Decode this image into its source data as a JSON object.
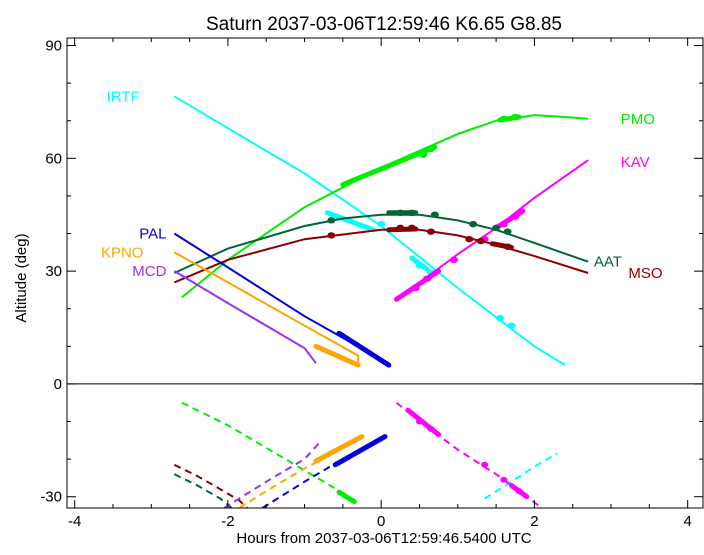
{
  "chart_data": {
    "type": "line",
    "title": "Saturn 2037-03-06T12:59:46  K6.65  G8.85",
    "xlabel": "Hours from 2037-03-06T12:59:46.5400 UTC",
    "ylabel": "Altitude (deg)",
    "xlim": [
      -4.1,
      4.2
    ],
    "ylim": [
      -33,
      92
    ],
    "x_ticks": [
      -4,
      -2,
      0,
      2,
      4
    ],
    "y_ticks": [
      -30,
      0,
      30,
      60,
      90
    ],
    "grid": false,
    "zero_line": true,
    "series": [
      {
        "name": "IRTF",
        "color": "#00ffff",
        "label_pos": [
          -3.1,
          76.5
        ],
        "solid": [
          [
            -2.7,
            76.5
          ],
          [
            -2.0,
            68.0
          ],
          [
            -1.0,
            56.0
          ],
          [
            0.0,
            42.0
          ],
          [
            1.0,
            25.5
          ],
          [
            2.0,
            10.0
          ],
          [
            2.4,
            5.0
          ]
        ],
        "dashed": [
          [
            1.35,
            -30.5
          ],
          [
            1.7,
            -26.0
          ],
          [
            2.0,
            -22.0
          ],
          [
            2.3,
            -18.5
          ]
        ],
        "markers": [
          [
            0.0,
            42.5
          ],
          [
            0.5,
            31.5
          ],
          [
            0.65,
            29.5
          ],
          [
            1.55,
            17.5
          ],
          [
            1.7,
            15.5
          ]
        ],
        "thick": [
          [
            [
              -0.7,
              45.5
            ],
            [
              -0.1,
              41.0
            ]
          ],
          [
            [
              0.4,
              33.5
            ],
            [
              0.6,
              30.5
            ]
          ]
        ]
      },
      {
        "name": "PMO",
        "color": "#00ee00",
        "label_pos": [
          3.1,
          70.5
        ],
        "solid": [
          [
            -2.6,
            23.0
          ],
          [
            -2.0,
            33.0
          ],
          [
            -1.0,
            47.0
          ],
          [
            0.0,
            57.5
          ],
          [
            0.5,
            62.0
          ],
          [
            1.0,
            66.5
          ],
          [
            1.5,
            70.0
          ],
          [
            2.0,
            71.5
          ],
          [
            2.4,
            71.0
          ],
          [
            2.7,
            70.5
          ]
        ],
        "dashed": [
          [
            -2.6,
            -5.0
          ],
          [
            -2.0,
            -11.0
          ],
          [
            -1.5,
            -17.0
          ],
          [
            -1.0,
            -23.0
          ],
          [
            -0.5,
            -29.0
          ],
          [
            -0.35,
            -31.0
          ]
        ],
        "markers": [
          [
            0.55,
            61.0
          ],
          [
            0.65,
            62.5
          ],
          [
            1.6,
            70.5
          ],
          [
            1.75,
            71.0
          ]
        ],
        "thick": [
          [
            [
              -0.5,
              53.0
            ],
            [
              0.7,
              63.0
            ]
          ],
          [
            [
              1.55,
              70.2
            ],
            [
              1.8,
              71.0
            ]
          ],
          [
            [
              -0.55,
              -28.8
            ],
            [
              -0.35,
              -31.3
            ]
          ]
        ]
      },
      {
        "name": "KAV",
        "color": "#ff00ff",
        "label_pos": [
          3.1,
          59.0
        ],
        "solid": [
          [
            0.2,
            22.5
          ],
          [
            0.5,
            27.0
          ],
          [
            1.0,
            34.5
          ],
          [
            1.5,
            41.5
          ],
          [
            2.0,
            49.5
          ],
          [
            2.7,
            59.5
          ]
        ],
        "dashed": [
          [
            0.2,
            -5.0
          ],
          [
            0.5,
            -10.0
          ],
          [
            1.0,
            -17.5
          ],
          [
            1.5,
            -24.0
          ],
          [
            2.0,
            -31.5
          ],
          [
            2.1,
            -33.0
          ]
        ],
        "markers": [
          [
            0.45,
            25.5
          ],
          [
            0.6,
            28.0
          ],
          [
            0.95,
            33.0
          ],
          [
            1.35,
            38.5
          ],
          [
            1.6,
            42.5
          ],
          [
            1.75,
            44.5
          ]
        ],
        "thick": [
          [
            [
              0.2,
              22.5
            ],
            [
              0.75,
              30.0
            ]
          ],
          [
            [
              1.5,
              41.5
            ],
            [
              1.85,
              46.0
            ]
          ],
          [
            [
              0.35,
              -7.0
            ],
            [
              0.75,
              -13.5
            ]
          ],
          [
            [
              1.7,
              -27.0
            ],
            [
              1.9,
              -30.0
            ]
          ]
        ],
        "dashed_markers": [
          [
            0.5,
            -10.0
          ],
          [
            0.65,
            -12.0
          ],
          [
            1.35,
            -21.5
          ],
          [
            1.6,
            -25.5
          ],
          [
            1.8,
            -28.5
          ]
        ]
      },
      {
        "name": "AAT",
        "color": "#006633",
        "label_pos": [
          2.75,
          32.5
        ],
        "solid": [
          [
            -2.7,
            29.5
          ],
          [
            -2.0,
            36.0
          ],
          [
            -1.0,
            42.0
          ],
          [
            -0.5,
            44.0
          ],
          [
            0.0,
            45.0
          ],
          [
            0.5,
            45.0
          ],
          [
            1.0,
            43.5
          ],
          [
            1.5,
            41.0
          ],
          [
            2.0,
            37.5
          ],
          [
            2.7,
            32.5
          ]
        ],
        "dashed": [
          [
            -2.7,
            -24.0
          ],
          [
            -2.4,
            -27.0
          ],
          [
            -2.1,
            -30.5
          ],
          [
            -1.95,
            -33.0
          ]
        ],
        "markers": [
          [
            -0.65,
            43.5
          ],
          [
            0.25,
            45.5
          ],
          [
            0.4,
            45.5
          ],
          [
            0.7,
            45.0
          ],
          [
            1.2,
            42.5
          ],
          [
            1.5,
            41.5
          ],
          [
            1.65,
            40.5
          ]
        ],
        "thick": [
          [
            [
              0.1,
              45.5
            ],
            [
              0.45,
              45.5
            ]
          ]
        ]
      },
      {
        "name": "MSO",
        "color": "#8b0000",
        "label_pos": [
          3.2,
          29.5
        ],
        "solid": [
          [
            -2.7,
            27.0
          ],
          [
            -2.0,
            33.0
          ],
          [
            -1.0,
            38.5
          ],
          [
            0.0,
            41.0
          ],
          [
            0.5,
            41.0
          ],
          [
            1.0,
            39.5
          ],
          [
            1.5,
            37.0
          ],
          [
            2.0,
            34.0
          ],
          [
            2.7,
            29.5
          ]
        ],
        "dashed": [
          [
            -2.7,
            -21.5
          ],
          [
            -2.4,
            -24.5
          ],
          [
            -2.1,
            -28.0
          ],
          [
            -1.85,
            -31.0
          ],
          [
            -1.75,
            -33.0
          ]
        ],
        "markers": [
          [
            -0.65,
            39.5
          ],
          [
            0.25,
            41.5
          ],
          [
            0.4,
            41.5
          ],
          [
            0.65,
            40.5
          ],
          [
            1.15,
            38.5
          ],
          [
            1.3,
            38.0
          ],
          [
            1.65,
            36.5
          ]
        ],
        "thick": [
          [
            [
              0.1,
              41.0
            ],
            [
              0.45,
              41.2
            ]
          ],
          [
            [
              1.45,
              37.3
            ],
            [
              1.7,
              36.3
            ]
          ]
        ]
      },
      {
        "name": "PAL",
        "color": "#0000dd",
        "label_pos": [
          -2.75,
          40.0
        ],
        "solid": [
          [
            -2.7,
            40.0
          ],
          [
            -2.0,
            31.0
          ],
          [
            -1.0,
            18.0
          ],
          [
            0.0,
            6.5
          ],
          [
            0.1,
            5.0
          ]
        ],
        "dashed": [
          [
            -1.55,
            -33.0
          ],
          [
            -1.0,
            -26.0
          ],
          [
            -0.5,
            -20.0
          ],
          [
            0.05,
            -14.0
          ]
        ],
        "markers": [],
        "thick": [
          [
            [
              -0.55,
              13.5
            ],
            [
              0.1,
              5.0
            ]
          ],
          [
            [
              -0.6,
              -21.5
            ],
            [
              0.05,
              -14.0
            ]
          ]
        ]
      },
      {
        "name": "KPNO",
        "color": "#ffa500",
        "label_pos": [
          -3.05,
          35.0
        ],
        "solid": [
          [
            -2.7,
            35.0
          ],
          [
            -2.0,
            27.0
          ],
          [
            -1.0,
            15.5
          ],
          [
            -0.3,
            7.5
          ],
          [
            -0.3,
            5.0
          ]
        ],
        "dashed": [
          [
            -1.85,
            -33.0
          ],
          [
            -1.5,
            -28.5
          ],
          [
            -1.0,
            -22.5
          ],
          [
            -0.5,
            -17.0
          ],
          [
            -0.25,
            -14.0
          ]
        ],
        "markers": [],
        "thick": [
          [
            [
              -0.85,
              10.0
            ],
            [
              -0.3,
              5.0
            ]
          ],
          [
            [
              -0.85,
              -20.5
            ],
            [
              -0.25,
              -14.0
            ]
          ]
        ]
      },
      {
        "name": "MCD",
        "color": "#9933ee",
        "label_pos": [
          -2.75,
          30.0
        ],
        "solid": [
          [
            -2.7,
            30.0
          ],
          [
            -2.0,
            21.5
          ],
          [
            -1.0,
            9.5
          ],
          [
            -0.85,
            5.5
          ]
        ],
        "dashed": [
          [
            -2.05,
            -33.0
          ],
          [
            -1.5,
            -26.0
          ],
          [
            -1.0,
            -20.0
          ],
          [
            -0.8,
            -15.5
          ]
        ],
        "markers": [],
        "thick": []
      }
    ]
  }
}
